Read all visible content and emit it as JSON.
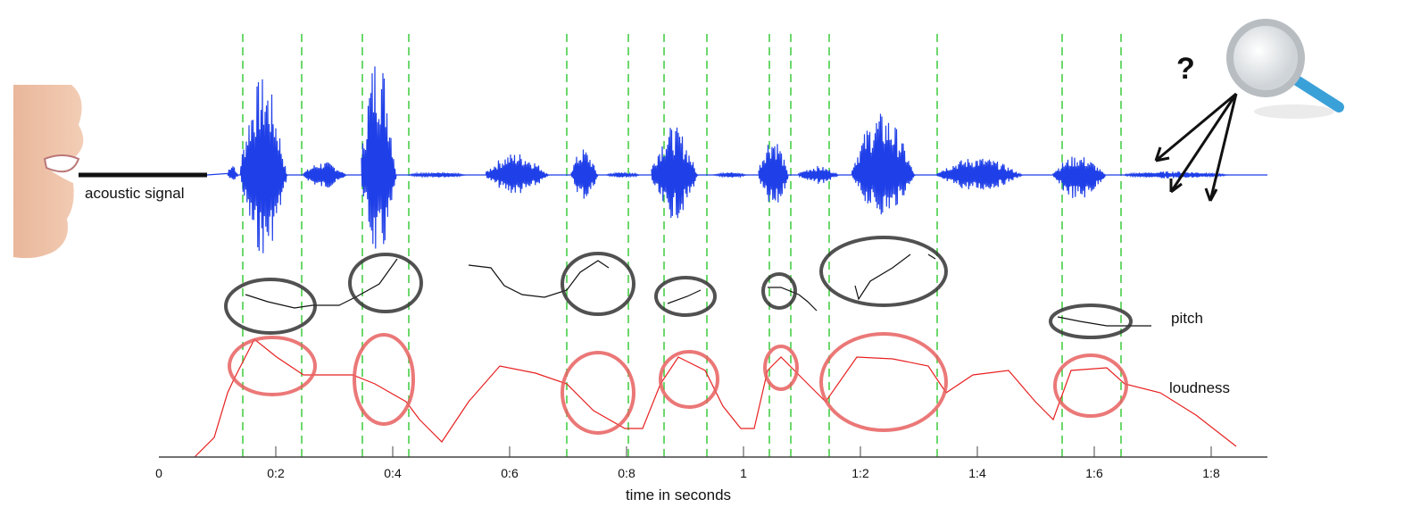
{
  "labels": {
    "signal": "acoustic signal",
    "pitch": "pitch",
    "loudness": "loudness",
    "question": "?"
  },
  "x_axis": {
    "label": "time in seconds",
    "ticks": [
      "0",
      "0:2",
      "0:4",
      "0:6",
      "0:8",
      "1",
      "1:2",
      "1:4",
      "1:6",
      "1:8"
    ]
  }
}
